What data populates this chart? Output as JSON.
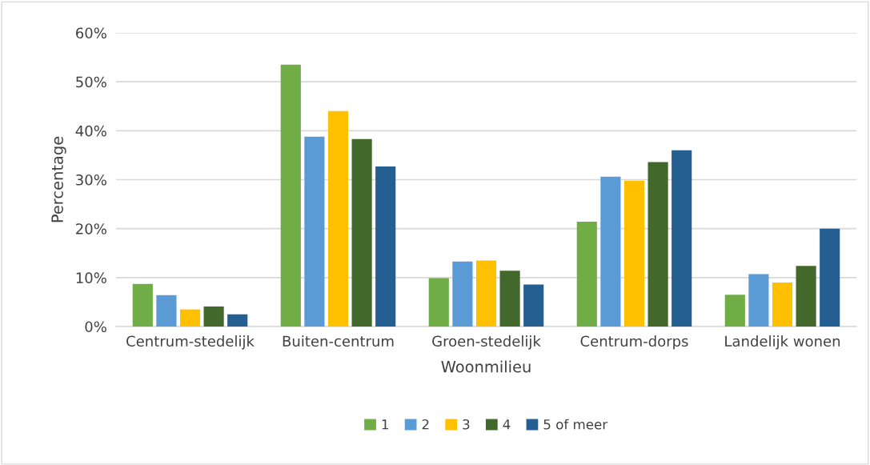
{
  "chart_data": {
    "type": "bar",
    "xlabel": "Woonmilieu",
    "ylabel": "Percentage",
    "categories": [
      "Centrum-stedelijk",
      "Buiten-centrum",
      "Groen-stedelijk",
      "Centrum-dorps",
      "Landelijk wonen"
    ],
    "series": [
      {
        "name": "1",
        "color": "#70ad47",
        "values": [
          8.7,
          53.5,
          9.9,
          21.4,
          6.5
        ]
      },
      {
        "name": "2",
        "color": "#5b9bd5",
        "values": [
          6.4,
          38.8,
          13.3,
          30.6,
          10.7
        ]
      },
      {
        "name": "3",
        "color": "#ffc000",
        "values": [
          3.5,
          44.0,
          13.5,
          29.8,
          9.0
        ]
      },
      {
        "name": "4",
        "color": "#43682b",
        "values": [
          4.1,
          38.3,
          11.4,
          33.6,
          12.4
        ]
      },
      {
        "name": "5 of meer",
        "color": "#255e91",
        "values": [
          2.5,
          32.7,
          8.6,
          36.0,
          20.0
        ]
      }
    ],
    "ylim": [
      0,
      60
    ],
    "yticks": [
      {
        "value": 0,
        "label": "0%"
      },
      {
        "value": 10,
        "label": "10%"
      },
      {
        "value": 20,
        "label": "20%"
      },
      {
        "value": 30,
        "label": "30%"
      },
      {
        "value": 40,
        "label": "40%"
      },
      {
        "value": 50,
        "label": "50%"
      },
      {
        "value": 60,
        "label": "60%"
      }
    ],
    "grid": "y",
    "legend": "bottom"
  }
}
